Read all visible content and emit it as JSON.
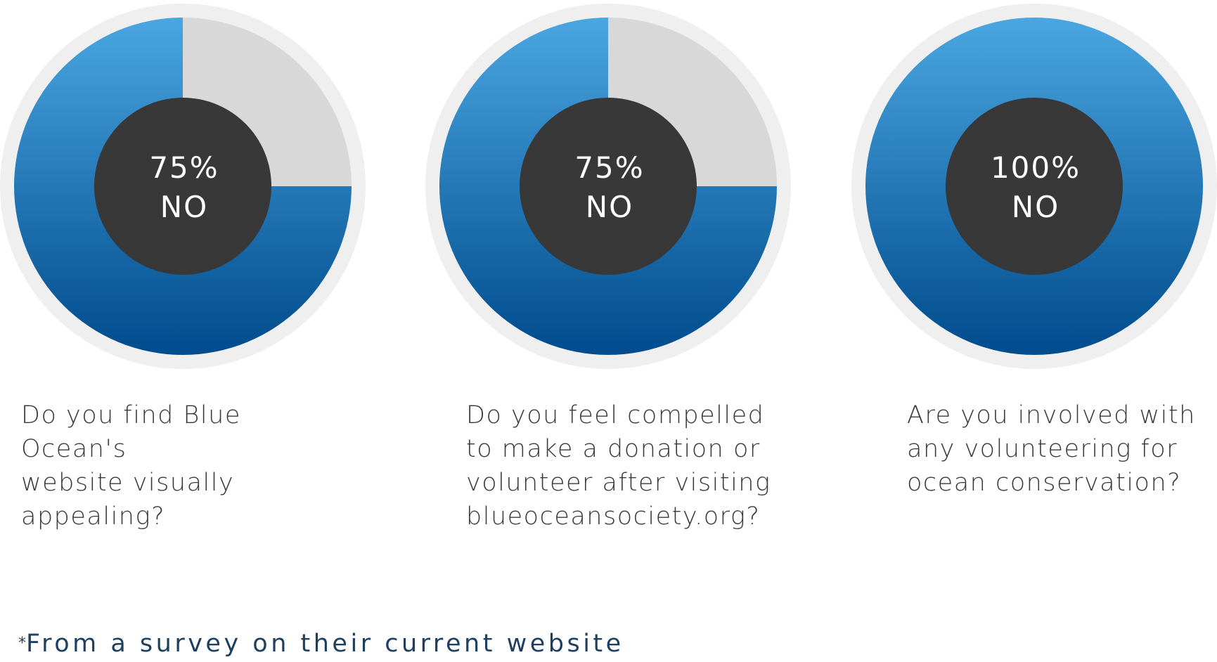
{
  "colors": {
    "answer_fill_top": "#4aa6e0",
    "answer_fill_bottom": "#004b8d",
    "remainder_fill": "#d8d8d8",
    "outer_ring": "#efefef",
    "center_disc": "#383838",
    "question_text": "#3a3a3a",
    "footnote_text": "#1e3f5e"
  },
  "chart_data": [
    {
      "type": "pie",
      "slices": [
        {
          "label": "NO",
          "value": 75
        },
        {
          "label": "other",
          "value": 25
        }
      ],
      "center_value": "75%",
      "center_label": "NO",
      "question": "Do you find Blue Ocean's website visually appealing?",
      "question_lines": [
        "Do you find Blue Ocean's",
        "website visually appealing?"
      ]
    },
    {
      "type": "pie",
      "slices": [
        {
          "label": "NO",
          "value": 75
        },
        {
          "label": "other",
          "value": 25
        }
      ],
      "center_value": "75%",
      "center_label": "NO",
      "question": "Do you feel compelled to make a donation or volunteer after visiting blueoceansociety.org?",
      "question_lines": [
        "Do you feel compelled",
        "to make a donation or",
        "volunteer after visiting",
        "blueoceansociety.org?"
      ]
    },
    {
      "type": "pie",
      "slices": [
        {
          "label": "NO",
          "value": 100
        },
        {
          "label": "other",
          "value": 0
        }
      ],
      "center_value": "100%",
      "center_label": "NO",
      "question": "Are you involved with any volunteering for ocean conservation?",
      "question_lines": [
        "Are you involved with",
        "any volunteering for",
        "ocean conservation?"
      ]
    }
  ],
  "footnote": {
    "marker": "*",
    "text": "From a survey on their current website"
  }
}
